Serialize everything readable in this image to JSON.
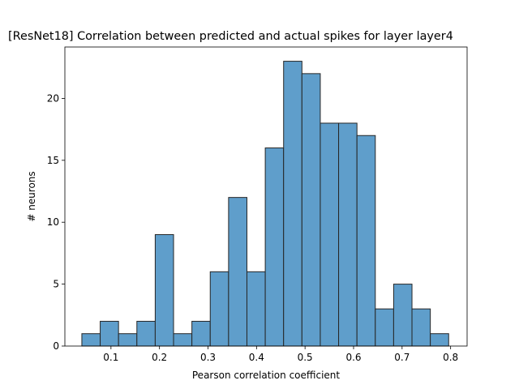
{
  "chart_data": {
    "type": "bar",
    "title": "[ResNet18] Correlation between predicted and actual spikes for layer layer4",
    "xlabel": "Pearson correlation coefficient",
    "ylabel": "# neurons",
    "bin_edges": [
      0.04,
      0.0778,
      0.1156,
      0.1534,
      0.1912,
      0.229,
      0.2668,
      0.3046,
      0.3424,
      0.3802,
      0.418,
      0.4558,
      0.4936,
      0.5314,
      0.5692,
      0.607,
      0.6448,
      0.6826,
      0.7204,
      0.7582,
      0.796
    ],
    "values": [
      1,
      2,
      1,
      2,
      9,
      1,
      2,
      6,
      12,
      6,
      16,
      23,
      22,
      18,
      18,
      17,
      3,
      5,
      3,
      1
    ],
    "xlim": [
      0.005,
      0.834
    ],
    "ylim": [
      0,
      24.15
    ],
    "xticks": [
      0.1,
      0.2,
      0.3,
      0.4,
      0.5,
      0.6,
      0.7,
      0.8
    ],
    "xtick_labels": [
      "0.1",
      "0.2",
      "0.3",
      "0.4",
      "0.5",
      "0.6",
      "0.7",
      "0.8"
    ],
    "yticks": [
      0,
      5,
      10,
      15,
      20
    ],
    "ytick_labels": [
      "0",
      "5",
      "10",
      "15",
      "20"
    ],
    "colors": {
      "bar_fill": "#5f9ecb",
      "bar_edge": "#262626"
    },
    "grid": false
  }
}
